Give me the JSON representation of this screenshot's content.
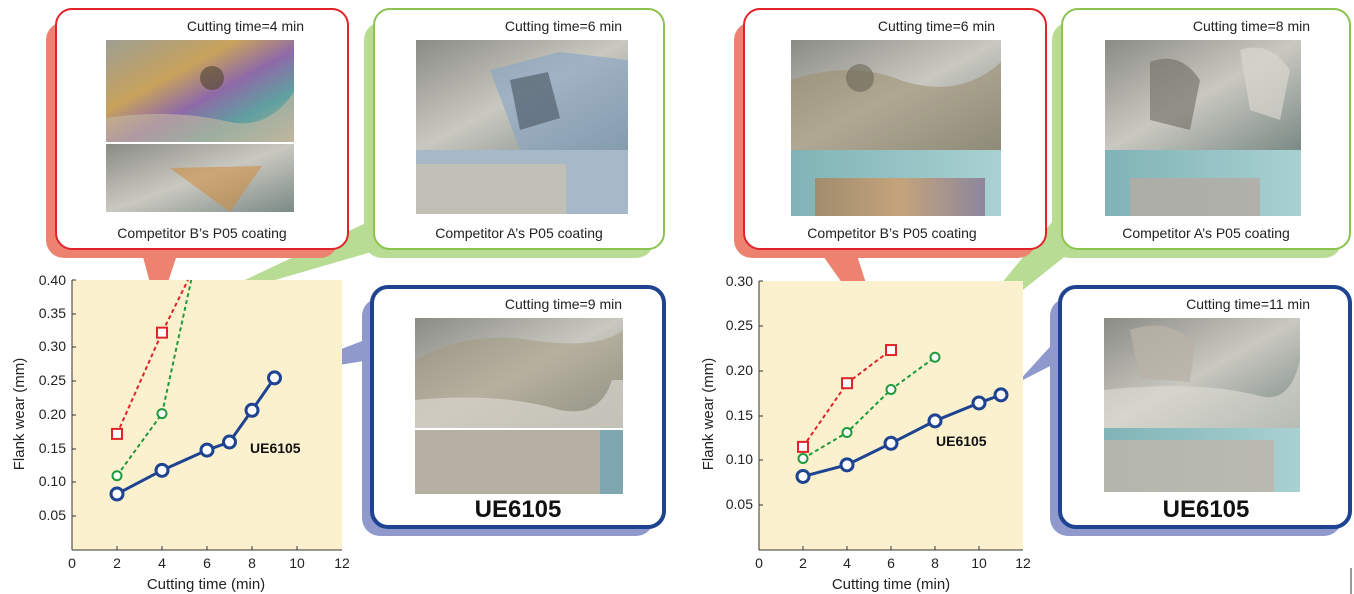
{
  "colors": {
    "plot_bg": "#fbf1cf",
    "competitor_b": "#e02329",
    "competitor_a": "#1e9a3a",
    "ue6105": "#1d4391",
    "callout_b": "#ee8270",
    "callout_a": "#b8dc94",
    "callout_ue": "#8f99cc"
  },
  "chart_data": [
    {
      "type": "line",
      "xlabel": "Cutting time (min)",
      "ylabel": "Flank wear (mm)",
      "xlim": [
        0,
        12
      ],
      "ylim": [
        0,
        0.4
      ],
      "xticks": [
        "0",
        "2",
        "4",
        "6",
        "8",
        "10",
        "12"
      ],
      "yticks": [
        "0.05",
        "0.10",
        "0.15",
        "0.20",
        "0.25",
        "0.30",
        "0.35",
        "0.40"
      ],
      "series": [
        {
          "key": "b",
          "name": "Competitor B’s P05 coating",
          "marker": "square",
          "line": "dashed",
          "color": "#e02329",
          "x": [
            2,
            4
          ],
          "y": [
            0.172,
            0.322
          ],
          "trend_to": [
            0.175,
            1
          ]
        },
        {
          "key": "a",
          "name": "Competitor A’s P05 coating",
          "marker": "circle",
          "line": "dashed",
          "color": "#1e9a3a",
          "x": [
            2,
            4
          ],
          "y": [
            0.11,
            0.202
          ],
          "trend_to": [
            5.3,
            0.4
          ]
        },
        {
          "key": "ue",
          "name": "UE6105",
          "marker": "circle",
          "line": "solid",
          "color": "#1d4391",
          "x": [
            2,
            4,
            6,
            7,
            8,
            9
          ],
          "y": [
            0.083,
            0.118,
            0.148,
            0.16,
            0.207,
            0.255
          ]
        }
      ],
      "series_label": "UE6105",
      "callouts": [
        {
          "key": "b",
          "caption": "Competitor B’s P05 coating",
          "time_label": "Cutting time=4 min"
        },
        {
          "key": "a",
          "caption": "Competitor A’s P05 coating",
          "time_label": "Cutting time=6 min"
        },
        {
          "key": "ue",
          "caption": "UE6105",
          "time_label": "Cutting time=9 min"
        }
      ]
    },
    {
      "type": "line",
      "xlabel": "Cutting time (min)",
      "ylabel": "Flank wear (mm)",
      "xlim": [
        0,
        12
      ],
      "ylim": [
        0,
        0.3
      ],
      "xticks": [
        "0",
        "2",
        "4",
        "6",
        "8",
        "10",
        "12"
      ],
      "yticks": [
        "0.05",
        "0.10",
        "0.15",
        "0.20",
        "0.25",
        "0.30"
      ],
      "series": [
        {
          "key": "b",
          "name": "Competitor B’s P05 coating",
          "marker": "square",
          "line": "dashed",
          "color": "#e02329",
          "x": [
            2,
            4,
            6
          ],
          "y": [
            0.115,
            0.186,
            0.223
          ]
        },
        {
          "key": "a",
          "name": "Competitor A’s P05 coating",
          "marker": "circle",
          "line": "dashed",
          "color": "#1e9a3a",
          "x": [
            2,
            4,
            6,
            8
          ],
          "y": [
            0.102,
            0.131,
            0.179,
            0.215
          ]
        },
        {
          "key": "ue",
          "name": "UE6105",
          "marker": "circle",
          "line": "solid",
          "color": "#1d4391",
          "x": [
            2,
            4,
            6,
            8,
            10,
            11
          ],
          "y": [
            0.082,
            0.095,
            0.119,
            0.144,
            0.164,
            0.173
          ]
        }
      ],
      "series_label": "UE6105",
      "callouts": [
        {
          "key": "b",
          "caption": "Competitor B’s P05 coating",
          "time_label": "Cutting time=6 min"
        },
        {
          "key": "a",
          "caption": "Competitor A’s P05 coating",
          "time_label": "Cutting time=8 min"
        },
        {
          "key": "ue",
          "caption": "UE6105",
          "time_label": "Cutting time=11 min"
        }
      ]
    }
  ]
}
